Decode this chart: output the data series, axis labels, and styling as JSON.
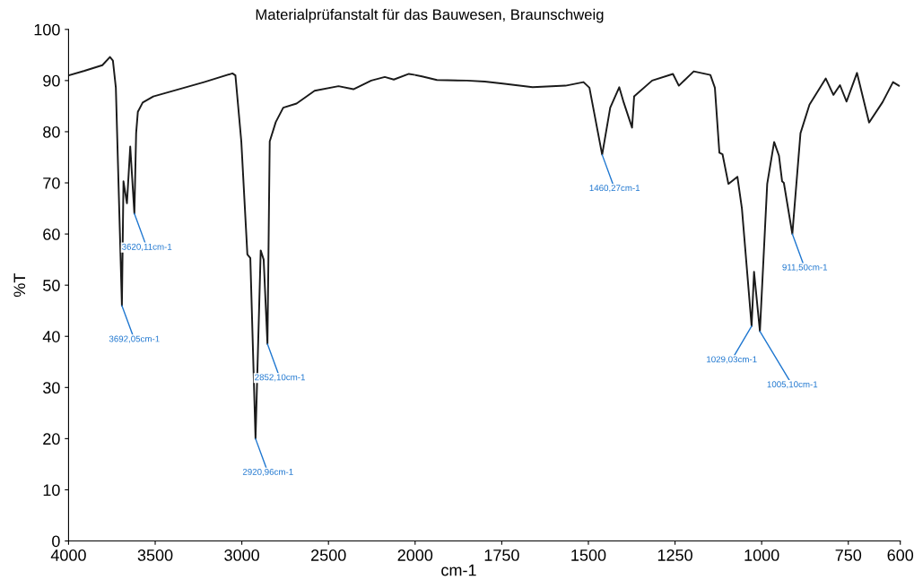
{
  "chart_data": [
    {
      "type": "line",
      "title": "Materialprüfanstalt für das Bauwesen, Braunschweig",
      "ylabel": "%T",
      "xlim": [
        4000,
        2000
      ],
      "xticks": [
        4000,
        3500,
        3000,
        2500,
        2000
      ],
      "ylim": [
        0,
        100
      ],
      "yticks": [
        0,
        10,
        20,
        30,
        40,
        50,
        60,
        70,
        80,
        90,
        100
      ],
      "grid": false,
      "legend": false,
      "marker": "none",
      "line_style": "solid",
      "series": [
        {
          "color": "#1a1a1a",
          "x": [
            4000,
            3908,
            3805,
            3761,
            3744,
            3727,
            3692.05,
            3683,
            3663,
            3644,
            3620.11,
            3610,
            3600,
            3572,
            3511,
            3218,
            3054,
            3037,
            3003,
            2968,
            2951,
            2920.96,
            2891,
            2874,
            2852.1,
            2839,
            2804,
            2761,
            2684,
            2580,
            2442,
            2356,
            2253,
            2175,
            2123,
            2036,
            2000
          ],
          "values": [
            91.0,
            91.9,
            93.0,
            94.6,
            93.9,
            88.6,
            46,
            70.3,
            66.0,
            77.1,
            64,
            79.7,
            83.9,
            85.7,
            86.9,
            89.7,
            91.4,
            91.0,
            78.1,
            56,
            55.3,
            20,
            56.8,
            55,
            38.5,
            78.1,
            81.9,
            84.7,
            85.5,
            88.0,
            88.9,
            88.3,
            90.0,
            90.7,
            90.2,
            91.3,
            91.1
          ]
        }
      ],
      "annotations": [
        {
          "text": "3692,05cm-1",
          "x": 3692.05,
          "y": 46
        },
        {
          "text": "3620,11cm-1",
          "x": 3620.11,
          "y": 64
        },
        {
          "text": "2920,96cm-1",
          "x": 2920.96,
          "y": 20
        },
        {
          "text": "2852,10cm-1",
          "x": 2852.1,
          "y": 38.5
        }
      ]
    },
    {
      "type": "line",
      "xlabel": "cm-1",
      "tick_labels": "x",
      "xlim": [
        2000,
        600
      ],
      "xticks": [
        1750,
        1500,
        1250,
        1000,
        750,
        600
      ],
      "ylim": [
        0,
        100
      ],
      "grid": false,
      "legend": false,
      "marker": "none",
      "line_style": "solid",
      "series": [
        {
          "color": "#1a1a1a",
          "x": [
            2000,
            1980,
            1937,
            1851,
            1799,
            1747,
            1661,
            1566,
            1514,
            1497,
            1460.27,
            1437,
            1411,
            1398,
            1374,
            1368,
            1316,
            1256,
            1239,
            1196,
            1148,
            1135,
            1122,
            1113,
            1096,
            1070,
            1057,
            1029.03,
            1022,
            1005.1,
            984,
            964,
            950,
            941,
            936,
            911.5,
            888,
            862,
            815,
            793,
            774,
            755,
            725,
            690,
            651,
            621,
            604
          ],
          "values": [
            91.1,
            90.8,
            90.1,
            90.0,
            89.8,
            89.4,
            88.7,
            89.0,
            89.7,
            88.6,
            75.5,
            84.7,
            88.7,
            85.7,
            80.8,
            86.9,
            90.0,
            91.3,
            89.0,
            91.8,
            91.1,
            88.6,
            75.9,
            75.6,
            69.8,
            71.2,
            65,
            42,
            52.6,
            41,
            69.8,
            78.0,
            75.3,
            70.3,
            70.0,
            60,
            79.7,
            85.3,
            90.4,
            87.2,
            89.1,
            85.9,
            91.5,
            81.8,
            85.8,
            89.7,
            89.0
          ]
        }
      ],
      "annotations": [
        {
          "text": "1460,27cm-1",
          "x": 1460.27,
          "y": 75.5
        },
        {
          "text": "1029,03cm-1",
          "x": 1029.03,
          "y": 42
        },
        {
          "text": "1005,10cm-1",
          "x": 1005.1,
          "y": 41
        },
        {
          "text": "911,50cm-1",
          "x": 911.5,
          "y": 60
        }
      ]
    }
  ]
}
